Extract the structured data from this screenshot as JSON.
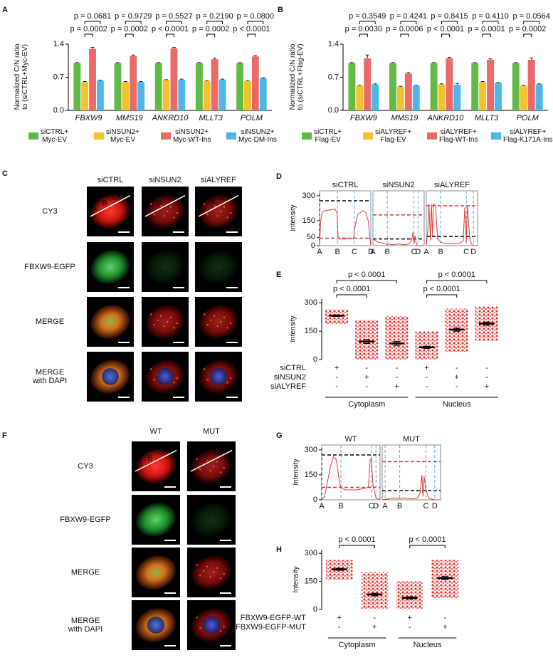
{
  "panel_labels": [
    "A",
    "B",
    "C",
    "D",
    "E",
    "F",
    "G",
    "H"
  ],
  "chart_data": [
    {
      "type": "bar",
      "ylabel": "Normalized C/N ratio\nto (siCTRL+Myc-EV)",
      "categories": [
        "FBXW9",
        "MMS19",
        "ANKRD10",
        "MLLT3",
        "POLM"
      ],
      "series": [
        {
          "name": "siCTRL+\nMyc-EV",
          "color": "#63b946",
          "values": [
            1,
            1,
            1,
            1,
            1
          ],
          "errors": [
            0.01,
            0.01,
            0.01,
            0.01,
            0.01
          ]
        },
        {
          "name": "siNSUN2+\nMyc-EV",
          "color": "#f2c230",
          "values": [
            0.6,
            0.6,
            0.64,
            0.62,
            0.62
          ],
          "errors": [
            0.01,
            0.01,
            0.01,
            0.01,
            0.01
          ]
        },
        {
          "name": "siNSUN2+\nMyc-WT-Ins",
          "color": "#ea6a6a",
          "values": [
            1.3,
            1.15,
            1.31,
            1.08,
            1.14
          ],
          "errors": [
            0.03,
            0.02,
            0.02,
            0.02,
            0.02
          ]
        },
        {
          "name": "siNSUN2+\nMyc-DM-Ins",
          "color": "#4db8e8",
          "values": [
            0.63,
            0.6,
            0.65,
            0.65,
            0.68
          ],
          "errors": [
            0.01,
            0.01,
            0.01,
            0.01,
            0.01
          ]
        }
      ],
      "p_values": [
        [
          "p = 0.0681",
          "p = 0.0002"
        ],
        [
          "p = 0.9729",
          "p = 0.0002"
        ],
        [
          "p = 0.5527",
          "p < 0.0001"
        ],
        [
          "p = 0.2190",
          "p = 0.0002"
        ],
        [
          "p = 0.0800",
          "p < 0.0001"
        ]
      ],
      "ylim": [
        0,
        1.4
      ],
      "yticks": [
        {
          "value": 0,
          "label": "0.0"
        },
        0.7,
        1.4
      ]
    },
    {
      "type": "bar",
      "ylabel": "Normalized C/N ratio\nto (siCTRL+Flag-EV)",
      "categories": [
        "FBXW9",
        "MMS19",
        "ANKRD10",
        "MLLT3",
        "POLM"
      ],
      "series": [
        {
          "name": "siCTRL+\nFlag-EV",
          "color": "#63b946",
          "values": [
            1,
            1,
            1,
            1,
            1
          ],
          "errors": [
            0.01,
            0.01,
            0.01,
            0.01,
            0.01
          ]
        },
        {
          "name": "siALYREF+\nFlag-EV",
          "color": "#f2c230",
          "values": [
            0.52,
            0.5,
            0.55,
            0.6,
            0.52
          ],
          "errors": [
            0.01,
            0.01,
            0.01,
            0.01,
            0.01
          ]
        },
        {
          "name": "siALYREF+\nFlag-WT-Ins",
          "color": "#ea6a6a",
          "values": [
            1.1,
            0.78,
            1.1,
            1.07,
            1.07
          ],
          "errors": [
            0.07,
            0.02,
            0.02,
            0.02,
            0.04
          ]
        },
        {
          "name": "siALYREF+\nFlag-K171A-Ins",
          "color": "#4db8e8",
          "values": [
            0.55,
            0.52,
            0.54,
            0.58,
            0.55
          ],
          "errors": [
            0.01,
            0.01,
            0.03,
            0.01,
            0.01
          ]
        }
      ],
      "p_values": [
        [
          "p = 0.3549",
          "p = 0.0030"
        ],
        [
          "p = 0.4241",
          "p = 0.0006"
        ],
        [
          "p = 0.8415",
          "p < 0.0001"
        ],
        [
          "p = 0.4110",
          "p = 0.0001"
        ],
        [
          "p = 0.0564",
          "p = 0.0002"
        ]
      ],
      "ylim": [
        0,
        1.4
      ],
      "yticks": [
        {
          "value": 0,
          "label": "0.0"
        },
        0.7,
        1.4
      ]
    },
    {
      "type": "line",
      "ylabel": "Intensity",
      "ylim": [
        0,
        330
      ],
      "yticks": [
        0,
        50,
        150,
        300
      ],
      "xlim": [
        0,
        100
      ],
      "panels": [
        {
          "title": "siCTRL",
          "xticks": [
            {
              "value": 0,
              "label": "A"
            },
            {
              "value": 35,
              "label": "B"
            },
            {
              "value": 68,
              "label": "C"
            },
            {
              "value": 100,
              "label": "D"
            }
          ],
          "x": [
            0,
            2,
            5,
            10,
            20,
            30,
            34,
            36,
            40,
            50,
            60,
            66,
            70,
            75,
            80,
            85,
            90,
            95,
            98,
            100
          ],
          "values": [
            0,
            140,
            200,
            210,
            215,
            220,
            200,
            60,
            40,
            40,
            45,
            40,
            130,
            190,
            200,
            210,
            200,
            150,
            50,
            0
          ],
          "levels": [
            {
              "value": 270,
              "color": "#000000"
            },
            {
              "value": 45,
              "color": "#e03030"
            }
          ]
        },
        {
          "title": "siNSUN2",
          "xticks": [
            {
              "value": 0,
              "label": "A"
            },
            {
              "value": 28,
              "label": "B"
            },
            {
              "value": 80,
              "label": "C"
            },
            {
              "value": 88,
              "label": "D"
            }
          ],
          "x": [
            0,
            5,
            10,
            20,
            25,
            28,
            30,
            40,
            50,
            60,
            70,
            75,
            78,
            80,
            82,
            84,
            86,
            88,
            92,
            100
          ],
          "values": [
            40,
            30,
            20,
            15,
            10,
            5,
            10,
            5,
            10,
            5,
            10,
            30,
            80,
            10,
            60,
            20,
            5,
            0,
            0,
            0
          ],
          "levels": [
            {
              "value": 40,
              "color": "#000000"
            },
            {
              "value": 185,
              "color": "#e03030"
            }
          ]
        },
        {
          "title": "siALYREF",
          "xticks": [
            {
              "value": 0,
              "label": "A"
            },
            {
              "value": 28,
              "label": "B"
            },
            {
              "value": 78,
              "label": "C"
            },
            {
              "value": 92,
              "label": "D"
            }
          ],
          "x": [
            0,
            3,
            5,
            8,
            10,
            12,
            14,
            18,
            22,
            28,
            35,
            50,
            65,
            72,
            75,
            78,
            80,
            85,
            88,
            92,
            100
          ],
          "values": [
            0,
            100,
            250,
            30,
            250,
            60,
            250,
            240,
            40,
            20,
            15,
            10,
            15,
            30,
            230,
            20,
            240,
            40,
            10,
            0,
            0
          ],
          "levels": [
            {
              "value": 55,
              "color": "#000000"
            },
            {
              "value": 240,
              "color": "#e03030"
            }
          ]
        }
      ]
    },
    {
      "type": "dot",
      "ylabel": "Intensity",
      "ylim": [
        0,
        320
      ],
      "yticks": [
        0,
        150,
        300
      ],
      "means": [
        232,
        95,
        85,
        65,
        158,
        190
      ],
      "errors": [
        4,
        10,
        10,
        6,
        8,
        8
      ],
      "min": [
        188,
        0,
        0,
        0,
        40,
        100
      ],
      "max": [
        265,
        210,
        230,
        150,
        270,
        280
      ],
      "conditions": [
        {
          "name": "siCTRL",
          "signs": [
            "+",
            "-",
            "-",
            "+",
            "-",
            "-"
          ]
        },
        {
          "name": "siNSUN2",
          "signs": [
            "-",
            "+",
            "-",
            "-",
            "+",
            "-"
          ]
        },
        {
          "name": "siALYREF",
          "signs": [
            "-",
            "-",
            "+",
            "-",
            "-",
            "+"
          ]
        }
      ],
      "groups": [
        "Cytoplasm",
        "Nucleus"
      ],
      "comparisons": [
        "p < 0.0001",
        "p < 0.0001",
        "p < 0.0001",
        "p < 0.0001"
      ]
    },
    {
      "type": "line",
      "ylabel": "Intensity",
      "ylim": [
        0,
        330
      ],
      "yticks": [
        0,
        150,
        300
      ],
      "xlim": [
        0,
        100
      ],
      "panels": [
        {
          "title": "WT",
          "xticks": [
            {
              "value": 0,
              "label": "A"
            },
            {
              "value": 33,
              "label": "B"
            },
            {
              "value": 85,
              "label": "C"
            },
            {
              "value": 93,
              "label": "D"
            }
          ],
          "x": [
            0,
            5,
            15,
            20,
            25,
            30,
            33,
            40,
            60,
            75,
            80,
            83,
            85,
            88,
            90,
            93,
            100
          ],
          "values": [
            0,
            20,
            200,
            260,
            240,
            120,
            70,
            60,
            60,
            70,
            75,
            240,
            250,
            80,
            60,
            10,
            0
          ],
          "levels": [
            {
              "value": 270,
              "color": "#000000"
            },
            {
              "value": 75,
              "color": "#e03030"
            }
          ]
        },
        {
          "title": "MUT",
          "xticks": [
            {
              "value": 5,
              "label": "A"
            },
            {
              "value": 30,
              "label": "B"
            },
            {
              "value": 75,
              "label": "C"
            },
            {
              "value": 90,
              "label": "D"
            }
          ],
          "x": [
            0,
            10,
            20,
            30,
            40,
            50,
            60,
            65,
            68,
            70,
            72,
            75,
            78,
            80,
            85,
            90,
            100
          ],
          "values": [
            0,
            5,
            10,
            8,
            10,
            5,
            10,
            40,
            150,
            20,
            140,
            60,
            30,
            10,
            5,
            0,
            0
          ],
          "levels": [
            {
              "value": 55,
              "color": "#000000"
            },
            {
              "value": 230,
              "color": "#e03030"
            }
          ]
        }
      ]
    },
    {
      "type": "dot",
      "ylabel": "Intensity",
      "ylim": [
        0,
        320
      ],
      "yticks": [
        0,
        150,
        300
      ],
      "means": [
        215,
        80,
        62,
        168
      ],
      "errors": [
        5,
        7,
        6,
        8
      ],
      "min": [
        160,
        0,
        0,
        60
      ],
      "max": [
        265,
        200,
        150,
        265
      ],
      "conditions": [
        {
          "name": "FBXW9-EGFP-WT",
          "signs": [
            "+",
            "-",
            "+",
            "-"
          ]
        },
        {
          "name": "FBXW9-EGFP-MUT",
          "signs": [
            "-",
            "+",
            "-",
            "+"
          ]
        }
      ],
      "groups": [
        "Cytoplasm",
        "Nucleus"
      ],
      "comparisons": [
        "p < 0.0001",
        "p < 0.0001"
      ]
    }
  ],
  "micrographs": [
    {
      "columns": [
        "siCTRL",
        "siNSUN2",
        "siALYREF"
      ],
      "rows": [
        "CY3",
        "FBXW9-EGFP",
        "MERGE",
        "MERGE\nwith DAPI"
      ],
      "markers": [
        "A",
        "B",
        "C",
        "D"
      ]
    },
    {
      "columns": [
        "WT",
        "MUT"
      ],
      "rows": [
        "CY3",
        "FBXW9-EGFP",
        "MERGE",
        "MERGE\nwith DAPI"
      ],
      "markers": [
        "A",
        "B",
        "C",
        "D"
      ]
    }
  ]
}
